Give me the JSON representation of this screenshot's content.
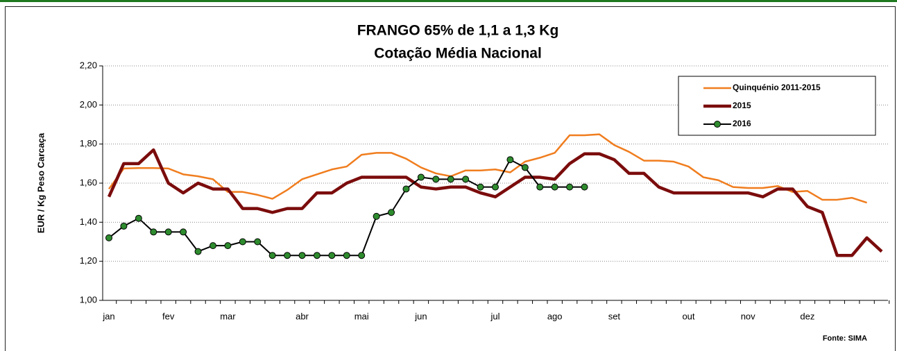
{
  "chart_data": {
    "type": "line",
    "title": "FRANGO 65% de 1,1 a 1,3 Kg",
    "subtitle": "Cotação Média Nacional",
    "y_label": "EUR / Kg Peso Carcaça",
    "source": "Fonte: SIMA",
    "categories": [
      "jan",
      null,
      null,
      null,
      "fev",
      null,
      null,
      null,
      "mar",
      null,
      null,
      null,
      null,
      "abr",
      null,
      null,
      null,
      "mai",
      null,
      null,
      null,
      "jun",
      null,
      null,
      null,
      null,
      "jul",
      null,
      null,
      null,
      "ago",
      null,
      null,
      null,
      "set",
      null,
      null,
      null,
      null,
      "out",
      null,
      null,
      null,
      "nov",
      null,
      null,
      null,
      "dez",
      null,
      null,
      null,
      null,
      null
    ],
    "ylim": [
      1.0,
      2.2
    ],
    "yticks": [
      {
        "value": 1.0,
        "label": "1,00"
      },
      {
        "value": 1.2,
        "label": "1,20"
      },
      {
        "value": 1.4,
        "label": "1,40"
      },
      {
        "value": 1.6,
        "label": "1,60"
      },
      {
        "value": 1.8,
        "label": "1,80"
      },
      {
        "value": 2.0,
        "label": "2,00"
      },
      {
        "value": 2.2,
        "label": "2,20"
      }
    ],
    "grid": true,
    "legend": "top-right",
    "series": [
      {
        "name": "Quinquénio 2011-2015",
        "color": "#f07d1e",
        "line_width": 2.5,
        "marker": "none",
        "values": [
          1.57,
          1.675,
          1.677,
          1.677,
          1.675,
          1.645,
          1.635,
          1.62,
          1.555,
          1.555,
          1.54,
          1.52,
          1.565,
          1.62,
          1.645,
          1.67,
          1.685,
          1.745,
          1.755,
          1.755,
          1.725,
          1.68,
          1.65,
          1.635,
          1.665,
          1.665,
          1.67,
          1.655,
          1.71,
          1.73,
          1.755,
          1.845,
          1.845,
          1.85,
          1.795,
          1.76,
          1.715,
          1.715,
          1.71,
          1.685,
          1.63,
          1.615,
          1.58,
          1.575,
          1.575,
          1.585,
          1.555,
          1.56,
          1.515,
          1.515,
          1.525,
          1.5,
          null
        ]
      },
      {
        "name": "2015",
        "color": "#7b0c0c",
        "line_width": 4.5,
        "marker": "none",
        "values": [
          1.53,
          1.7,
          1.7,
          1.77,
          1.6,
          1.55,
          1.6,
          1.57,
          1.57,
          1.47,
          1.47,
          1.45,
          1.47,
          1.47,
          1.55,
          1.55,
          1.6,
          1.63,
          1.63,
          1.63,
          1.63,
          1.58,
          1.57,
          1.58,
          1.58,
          1.55,
          1.53,
          1.58,
          1.63,
          1.63,
          1.62,
          1.7,
          1.75,
          1.75,
          1.72,
          1.65,
          1.65,
          1.58,
          1.55,
          1.55,
          1.55,
          1.55,
          1.55,
          1.55,
          1.53,
          1.57,
          1.57,
          1.48,
          1.45,
          1.23,
          1.23,
          1.32,
          1.25
        ]
      },
      {
        "name": "2016",
        "color": "#000000",
        "marker_color": "#2e8b2e",
        "line_width": 2,
        "marker": "circle",
        "values": [
          1.32,
          1.38,
          1.42,
          1.35,
          1.35,
          1.35,
          1.25,
          1.28,
          1.28,
          1.3,
          1.3,
          1.23,
          1.23,
          1.23,
          1.23,
          1.23,
          1.23,
          1.23,
          1.43,
          1.45,
          1.57,
          1.63,
          1.62,
          1.62,
          1.62,
          1.58,
          1.58,
          1.72,
          1.68,
          1.58,
          1.58,
          1.58,
          1.58,
          null,
          null,
          null,
          null,
          null,
          null,
          null,
          null,
          null,
          null,
          null,
          null,
          null,
          null,
          null,
          null,
          null,
          null,
          null,
          null
        ]
      }
    ]
  }
}
